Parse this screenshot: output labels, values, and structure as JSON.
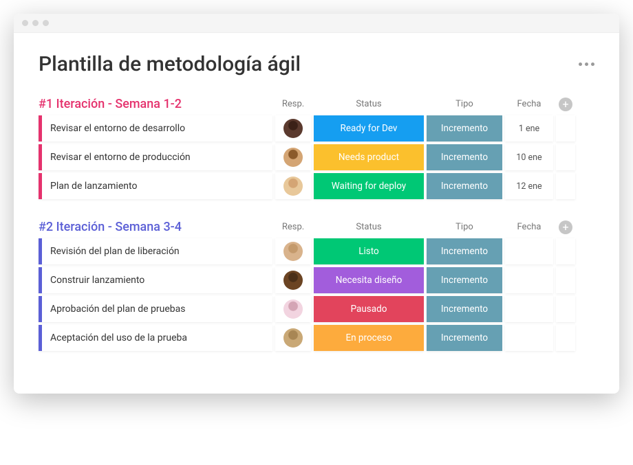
{
  "page": {
    "title": "Plantilla de metodología ágil"
  },
  "columns": {
    "resp": "Resp.",
    "status": "Status",
    "tipo": "Tipo",
    "fecha": "Fecha"
  },
  "tipo_badge": {
    "label": "Incremento",
    "bg": "#66a0b3"
  },
  "groups": [
    {
      "title": "#1 Iteración - Semana 1-2",
      "accent": "#e5326d",
      "rows": [
        {
          "task": "Revisar el entorno de desarrollo",
          "avatar_bg": "#5b3a2e",
          "avatar_face": "#3b2117",
          "status": {
            "label": "Ready for Dev",
            "bg": "#159ef1"
          },
          "fecha": "1 ene"
        },
        {
          "task": "Revisar el entorno de producción",
          "avatar_bg": "#d4a574",
          "avatar_face": "#8b5a2b",
          "status": {
            "label": "Needs product",
            "bg": "#fbc02d"
          },
          "fecha": "10 ene"
        },
        {
          "task": "Plan de lanzamiento",
          "avatar_bg": "#e8c89a",
          "avatar_face": "#d4a574",
          "status": {
            "label": "Waiting for deploy",
            "bg": "#00c875"
          },
          "fecha": "12 ene"
        }
      ]
    },
    {
      "title": "#2 Iteración - Semana 3-4",
      "accent": "#5b5fd6",
      "rows": [
        {
          "task": "Revisión del plan de liberación",
          "avatar_bg": "#d9b38c",
          "avatar_face": "#c49a6c",
          "status": {
            "label": "Listo",
            "bg": "#00c875"
          },
          "fecha": ""
        },
        {
          "task": "Construir lanzamiento",
          "avatar_bg": "#6b4423",
          "avatar_face": "#4a2f18",
          "status": {
            "label": "Necesita diseño",
            "bg": "#a25ddc"
          },
          "fecha": ""
        },
        {
          "task": "Aprobación del plan de pruebas",
          "avatar_bg": "#f2d4e0",
          "avatar_face": "#d4a5b5",
          "status": {
            "label": "Pausado",
            "bg": "#e2445c"
          },
          "fecha": ""
        },
        {
          "task": "Aceptación del uso de la prueba",
          "avatar_bg": "#c9a876",
          "avatar_face": "#a88654",
          "status": {
            "label": "En proceso",
            "bg": "#fdab3d"
          },
          "fecha": ""
        }
      ]
    }
  ]
}
